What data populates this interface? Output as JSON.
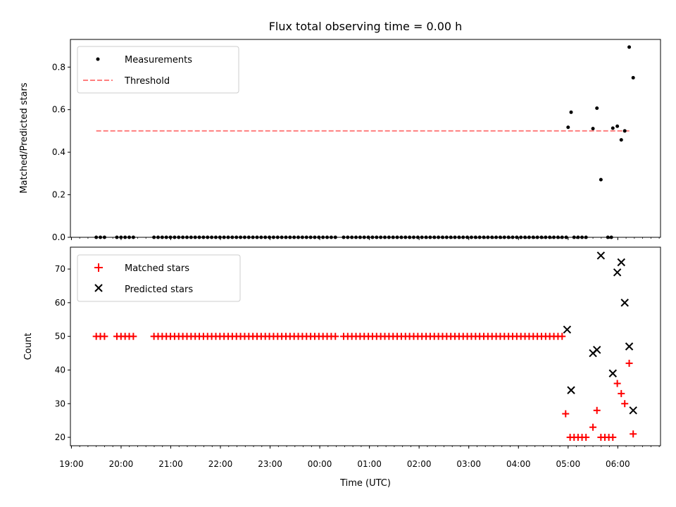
{
  "chart_data": {
    "title": "Flux total observing time = 0.00 h",
    "xlabel": "Time (UTC)",
    "x_unit": "hours",
    "x_ticks": [
      {
        "value": 19,
        "label": "19:00"
      },
      {
        "value": 20,
        "label": "20:00"
      },
      {
        "value": 21,
        "label": "21:00"
      },
      {
        "value": 22,
        "label": "22:00"
      },
      {
        "value": 23,
        "label": "23:00"
      },
      {
        "value": 24,
        "label": "00:00"
      },
      {
        "value": 25,
        "label": "01:00"
      },
      {
        "value": 26,
        "label": "02:00"
      },
      {
        "value": 27,
        "label": "03:00"
      },
      {
        "value": 28,
        "label": "04:00"
      },
      {
        "value": 29,
        "label": "05:00"
      },
      {
        "value": 30,
        "label": "06:00"
      }
    ],
    "panels": [
      {
        "type": "scatter",
        "ylabel": "Matched/Predicted stars",
        "ylim": [
          0,
          0.93
        ],
        "yticks": [
          0.0,
          0.2,
          0.4,
          0.6,
          0.8
        ],
        "ytick_labels": [
          "0.0",
          "0.2",
          "0.4",
          "0.6",
          "0.8"
        ],
        "legend_position": "upper-left",
        "series": [
          {
            "name": "Measurements",
            "kind": "points",
            "color": "#000000",
            "x": [
              29.0,
              29.06,
              29.5,
              29.58,
              29.66,
              29.9,
              29.99,
              30.07,
              30.14,
              30.23,
              30.31
            ],
            "y": [
              0.517,
              0.588,
              0.511,
              0.607,
              0.271,
              0.513,
              0.522,
              0.458,
              0.5,
              0.894,
              0.75
            ]
          },
          {
            "name": "Threshold",
            "kind": "dashed-line",
            "color": "#ff7f7f",
            "x": [
              19.5,
              30.25
            ],
            "y": [
              0.5,
              0.5
            ]
          }
        ],
        "zero_points": {
          "x_start": 19.5,
          "x_end": 29.0,
          "x_extra": [
            29.12,
            29.2,
            29.28,
            29.36,
            29.8,
            29.87
          ],
          "y": 0
        }
      },
      {
        "type": "scatter",
        "ylabel": "Count",
        "ylim": [
          17.5,
          76.5
        ],
        "yticks": [
          20,
          30,
          40,
          50,
          60,
          70
        ],
        "ytick_labels": [
          "20",
          "30",
          "40",
          "50",
          "60",
          "70"
        ],
        "legend_position": "upper-left",
        "series": [
          {
            "name": "Matched stars",
            "kind": "plus",
            "color": "#ff0000",
            "x": [
              28.95,
              29.04,
              29.12,
              29.2,
              29.28,
              29.36,
              29.5,
              29.58,
              29.66,
              29.74,
              29.82,
              29.9,
              29.99,
              30.07,
              30.14,
              30.23,
              30.31
            ],
            "y": [
              27,
              20,
              20,
              20,
              20,
              20,
              23,
              28,
              20,
              20,
              20,
              20,
              36,
              33,
              30,
              42,
              21
            ]
          },
          {
            "name": "Predicted stars",
            "kind": "cross",
            "color": "#000000",
            "x": [
              28.98,
              29.06,
              29.5,
              29.58,
              29.66,
              29.9,
              29.99,
              30.07,
              30.14,
              30.23,
              30.31
            ],
            "y": [
              52,
              34,
              45,
              46,
              74,
              39,
              69,
              72,
              60,
              47,
              28
            ]
          }
        ],
        "constant_points": {
          "x_start": 19.5,
          "x_end": 28.9,
          "y": 50,
          "series": "Matched stars"
        }
      }
    ]
  }
}
